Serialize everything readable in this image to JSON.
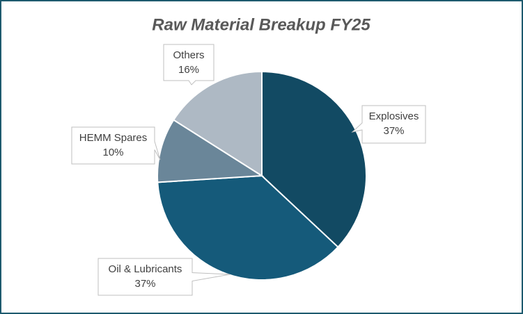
{
  "chart_data": {
    "type": "pie",
    "title": "Raw Material Breakup FY25",
    "categories": [
      "Explosives",
      "Oil & Lubricants",
      "HEMM Spares",
      "Others"
    ],
    "values": [
      37,
      37,
      10,
      16
    ],
    "value_labels": [
      "37%",
      "37%",
      "10%",
      "16%"
    ],
    "colors": [
      "#124a63",
      "#155a7a",
      "#6a8699",
      "#aeb9c4"
    ]
  }
}
